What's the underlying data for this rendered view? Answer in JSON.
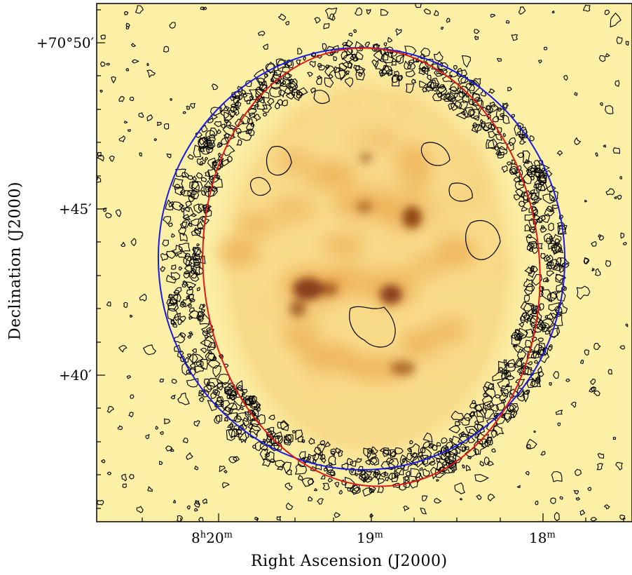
{
  "image": {
    "colormap": "yellow-orange heat (low = pale yellow, high = dark brown)",
    "overlays": {
      "contours": "#000000",
      "red_ellipse": "#e01818",
      "blue_ellipse": "#1a1ae0"
    },
    "colors": {
      "background": "#fbf0a6",
      "emission_low": "#f6d27c",
      "emission_mid": "#e89a3a",
      "emission_high": "#7a2a08",
      "frame": "#000000"
    }
  },
  "axes": {
    "x_title": "Right Ascension (J2000)",
    "y_title": "Declination (J2000)",
    "x_ticks": [
      {
        "h": "8",
        "m": "20"
      },
      {
        "h": "",
        "m": "19"
      },
      {
        "h": "",
        "m": "18"
      }
    ],
    "y_ticks": [
      "+70°50′",
      "+45′",
      "+40′"
    ]
  }
}
